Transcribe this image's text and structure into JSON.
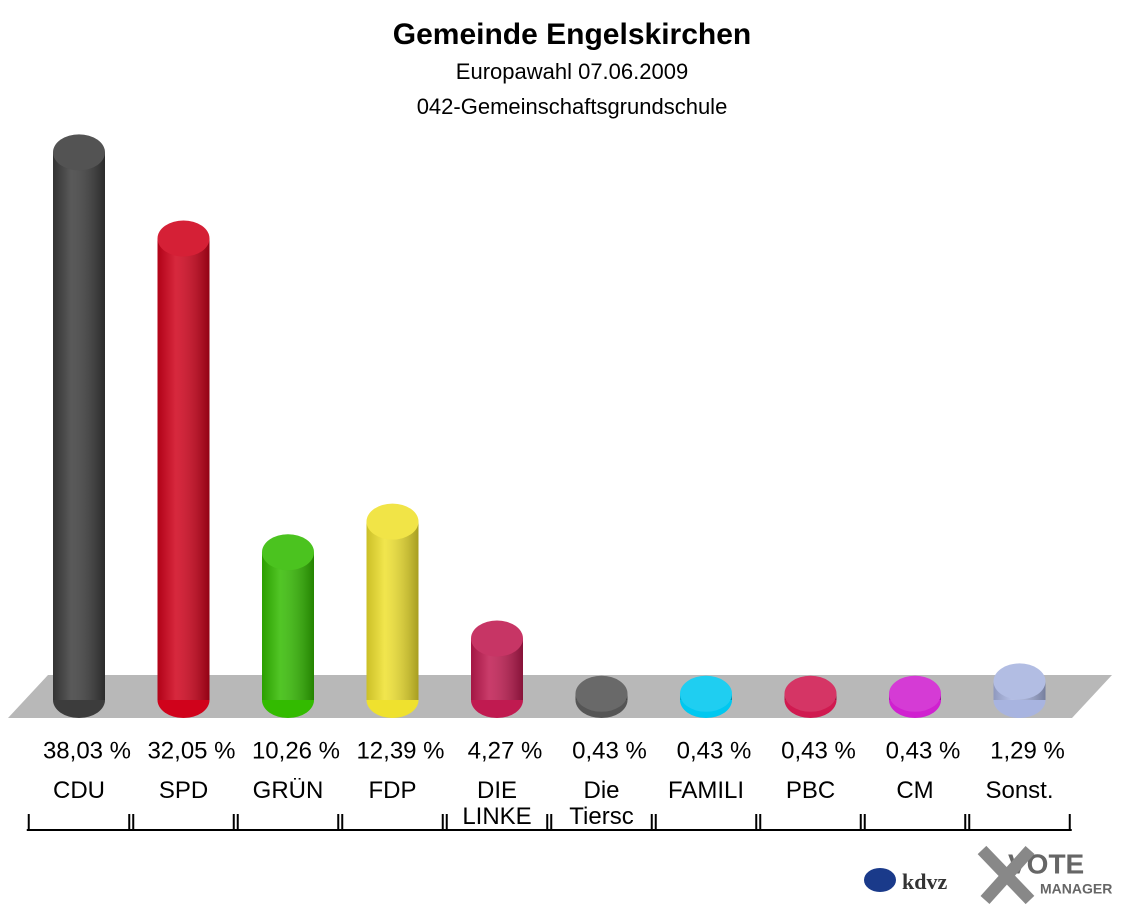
{
  "chart_data": {
    "type": "bar",
    "title": "Gemeinde Engelskirchen",
    "subtitle": "Europawahl 07.06.2009",
    "subtitle2": "042-Gemeinschaftsgrundschule",
    "categories": [
      "CDU",
      "SPD",
      "GRÜN",
      "FDP",
      "DIE LINKE",
      "Die Tiersc",
      "FAMILI",
      "PBC",
      "CM",
      "Sonst."
    ],
    "values": [
      38.03,
      32.05,
      10.26,
      12.39,
      4.27,
      0.43,
      0.43,
      0.43,
      0.43,
      1.29
    ],
    "value_labels": [
      "38,03 %",
      "32,05 %",
      "10,26 %",
      "12,39 %",
      "4,27 %",
      "0,43 %",
      "0,43 %",
      "0,43 %",
      "0,43 %",
      "1,29 %"
    ],
    "colors": [
      "#3c3c3c",
      "#d0021b",
      "#33bb00",
      "#efe12e",
      "#c01a50",
      "#555555",
      "#00c8f0",
      "#d01a50",
      "#d020d0",
      "#a8b4e0"
    ]
  },
  "logos": {
    "left": "kdvz",
    "right_top": "VOTE",
    "right_bottom": "MANAGER"
  }
}
